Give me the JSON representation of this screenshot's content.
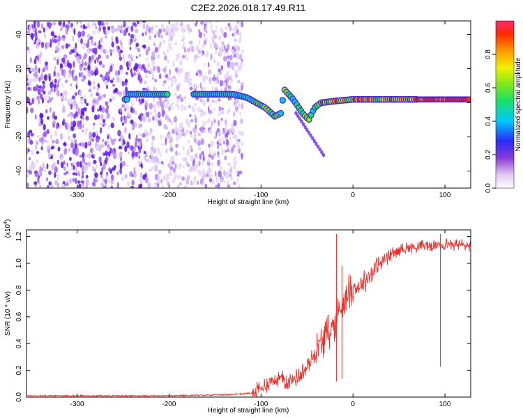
{
  "title": "C2E2.2026.018.17.49.R11",
  "chart_data": [
    {
      "type": "heatmap",
      "xlabel": "Height of straight line (km)",
      "ylabel": "Frequency (Hz)",
      "xlim": [
        -355,
        128
      ],
      "ylim": [
        -50,
        48
      ],
      "x_ticks": [
        -300,
        -200,
        -100,
        0,
        100
      ],
      "x_tick_labels": [
        "-300",
        "-200",
        "-100",
        "0",
        "100"
      ],
      "y_ticks": [
        40,
        20,
        0,
        -20,
        -40
      ],
      "y_tick_labels": [
        "40",
        "20",
        "0",
        "-20",
        "-40"
      ],
      "noise_region": {
        "x": [
          -355,
          -120
        ],
        "y": [
          -50,
          48
        ],
        "description_level": "low amplitude scattered"
      },
      "ridge": [
        {
          "x": -245,
          "f": 5
        },
        {
          "x": -225,
          "f": 5
        },
        {
          "x": -205,
          "f": 5
        },
        {
          "x": -170,
          "f": 5
        },
        {
          "x": -150,
          "f": 5
        },
        {
          "x": -130,
          "f": 5
        },
        {
          "x": -115,
          "f": 3
        },
        {
          "x": -105,
          "f": 0
        },
        {
          "x": -95,
          "f": -3
        },
        {
          "x": -85,
          "f": -8
        },
        {
          "x": -78,
          "f": -6
        },
        {
          "x": -75,
          "f": 8
        },
        {
          "x": -65,
          "f": 2
        },
        {
          "x": -55,
          "f": -6
        },
        {
          "x": -48,
          "f": -10
        },
        {
          "x": -42,
          "f": -3
        },
        {
          "x": -35,
          "f": 0
        },
        {
          "x": -20,
          "f": 1
        },
        {
          "x": 0,
          "f": 2
        },
        {
          "x": 50,
          "f": 2
        },
        {
          "x": 100,
          "f": 2
        },
        {
          "x": 128,
          "f": 2
        }
      ],
      "colorbar": {
        "label": "Normalized spectral amplitude",
        "range": [
          0,
          1
        ],
        "ticks": [
          0.0,
          0.2,
          0.4,
          0.6,
          0.8
        ],
        "tick_labels": [
          "0.0",
          "0.2",
          "0.4",
          "0.6",
          "0.8"
        ]
      }
    },
    {
      "type": "line",
      "xlabel": "Height of straight line (km)",
      "ylabel": "SNR (10 * v/v)",
      "y_multiplier": "(x10",
      "y_multiplier_exp": "4",
      "y_multiplier_close": ")",
      "xlim": [
        -355,
        128
      ],
      "ylim": [
        0,
        1.25
      ],
      "x_ticks": [
        -300,
        -200,
        -100,
        0,
        100
      ],
      "x_tick_labels": [
        "-300",
        "-200",
        "-100",
        "0",
        "100"
      ],
      "y_ticks": [
        0.0,
        0.2,
        0.4,
        0.6,
        0.8,
        1.0,
        1.2
      ],
      "y_tick_labels": [
        "0.0",
        "0.2",
        "0.4",
        "0.6",
        "0.8",
        "1.0",
        "1.2"
      ],
      "series": [
        {
          "name": "SNR",
          "color": "#e8322e",
          "x": [
            -355,
            -300,
            -250,
            -200,
            -160,
            -130,
            -110,
            -100,
            -90,
            -80,
            -70,
            -60,
            -50,
            -40,
            -30,
            -20,
            -15,
            -10,
            -5,
            0,
            10,
            20,
            30,
            40,
            50,
            60,
            80,
            100,
            115,
            128
          ],
          "y": [
            0.01,
            0.01,
            0.01,
            0.01,
            0.015,
            0.02,
            0.03,
            0.06,
            0.12,
            0.14,
            0.12,
            0.15,
            0.22,
            0.35,
            0.45,
            0.55,
            0.65,
            0.72,
            0.78,
            0.8,
            0.85,
            0.92,
            1.0,
            1.06,
            1.1,
            1.12,
            1.13,
            1.14,
            1.14,
            1.13
          ]
        }
      ],
      "spikes": [
        {
          "x": -18,
          "y": 1.22
        },
        {
          "x": -12,
          "y": 0.98
        },
        {
          "x": 95,
          "y": 1.22
        }
      ]
    }
  ]
}
